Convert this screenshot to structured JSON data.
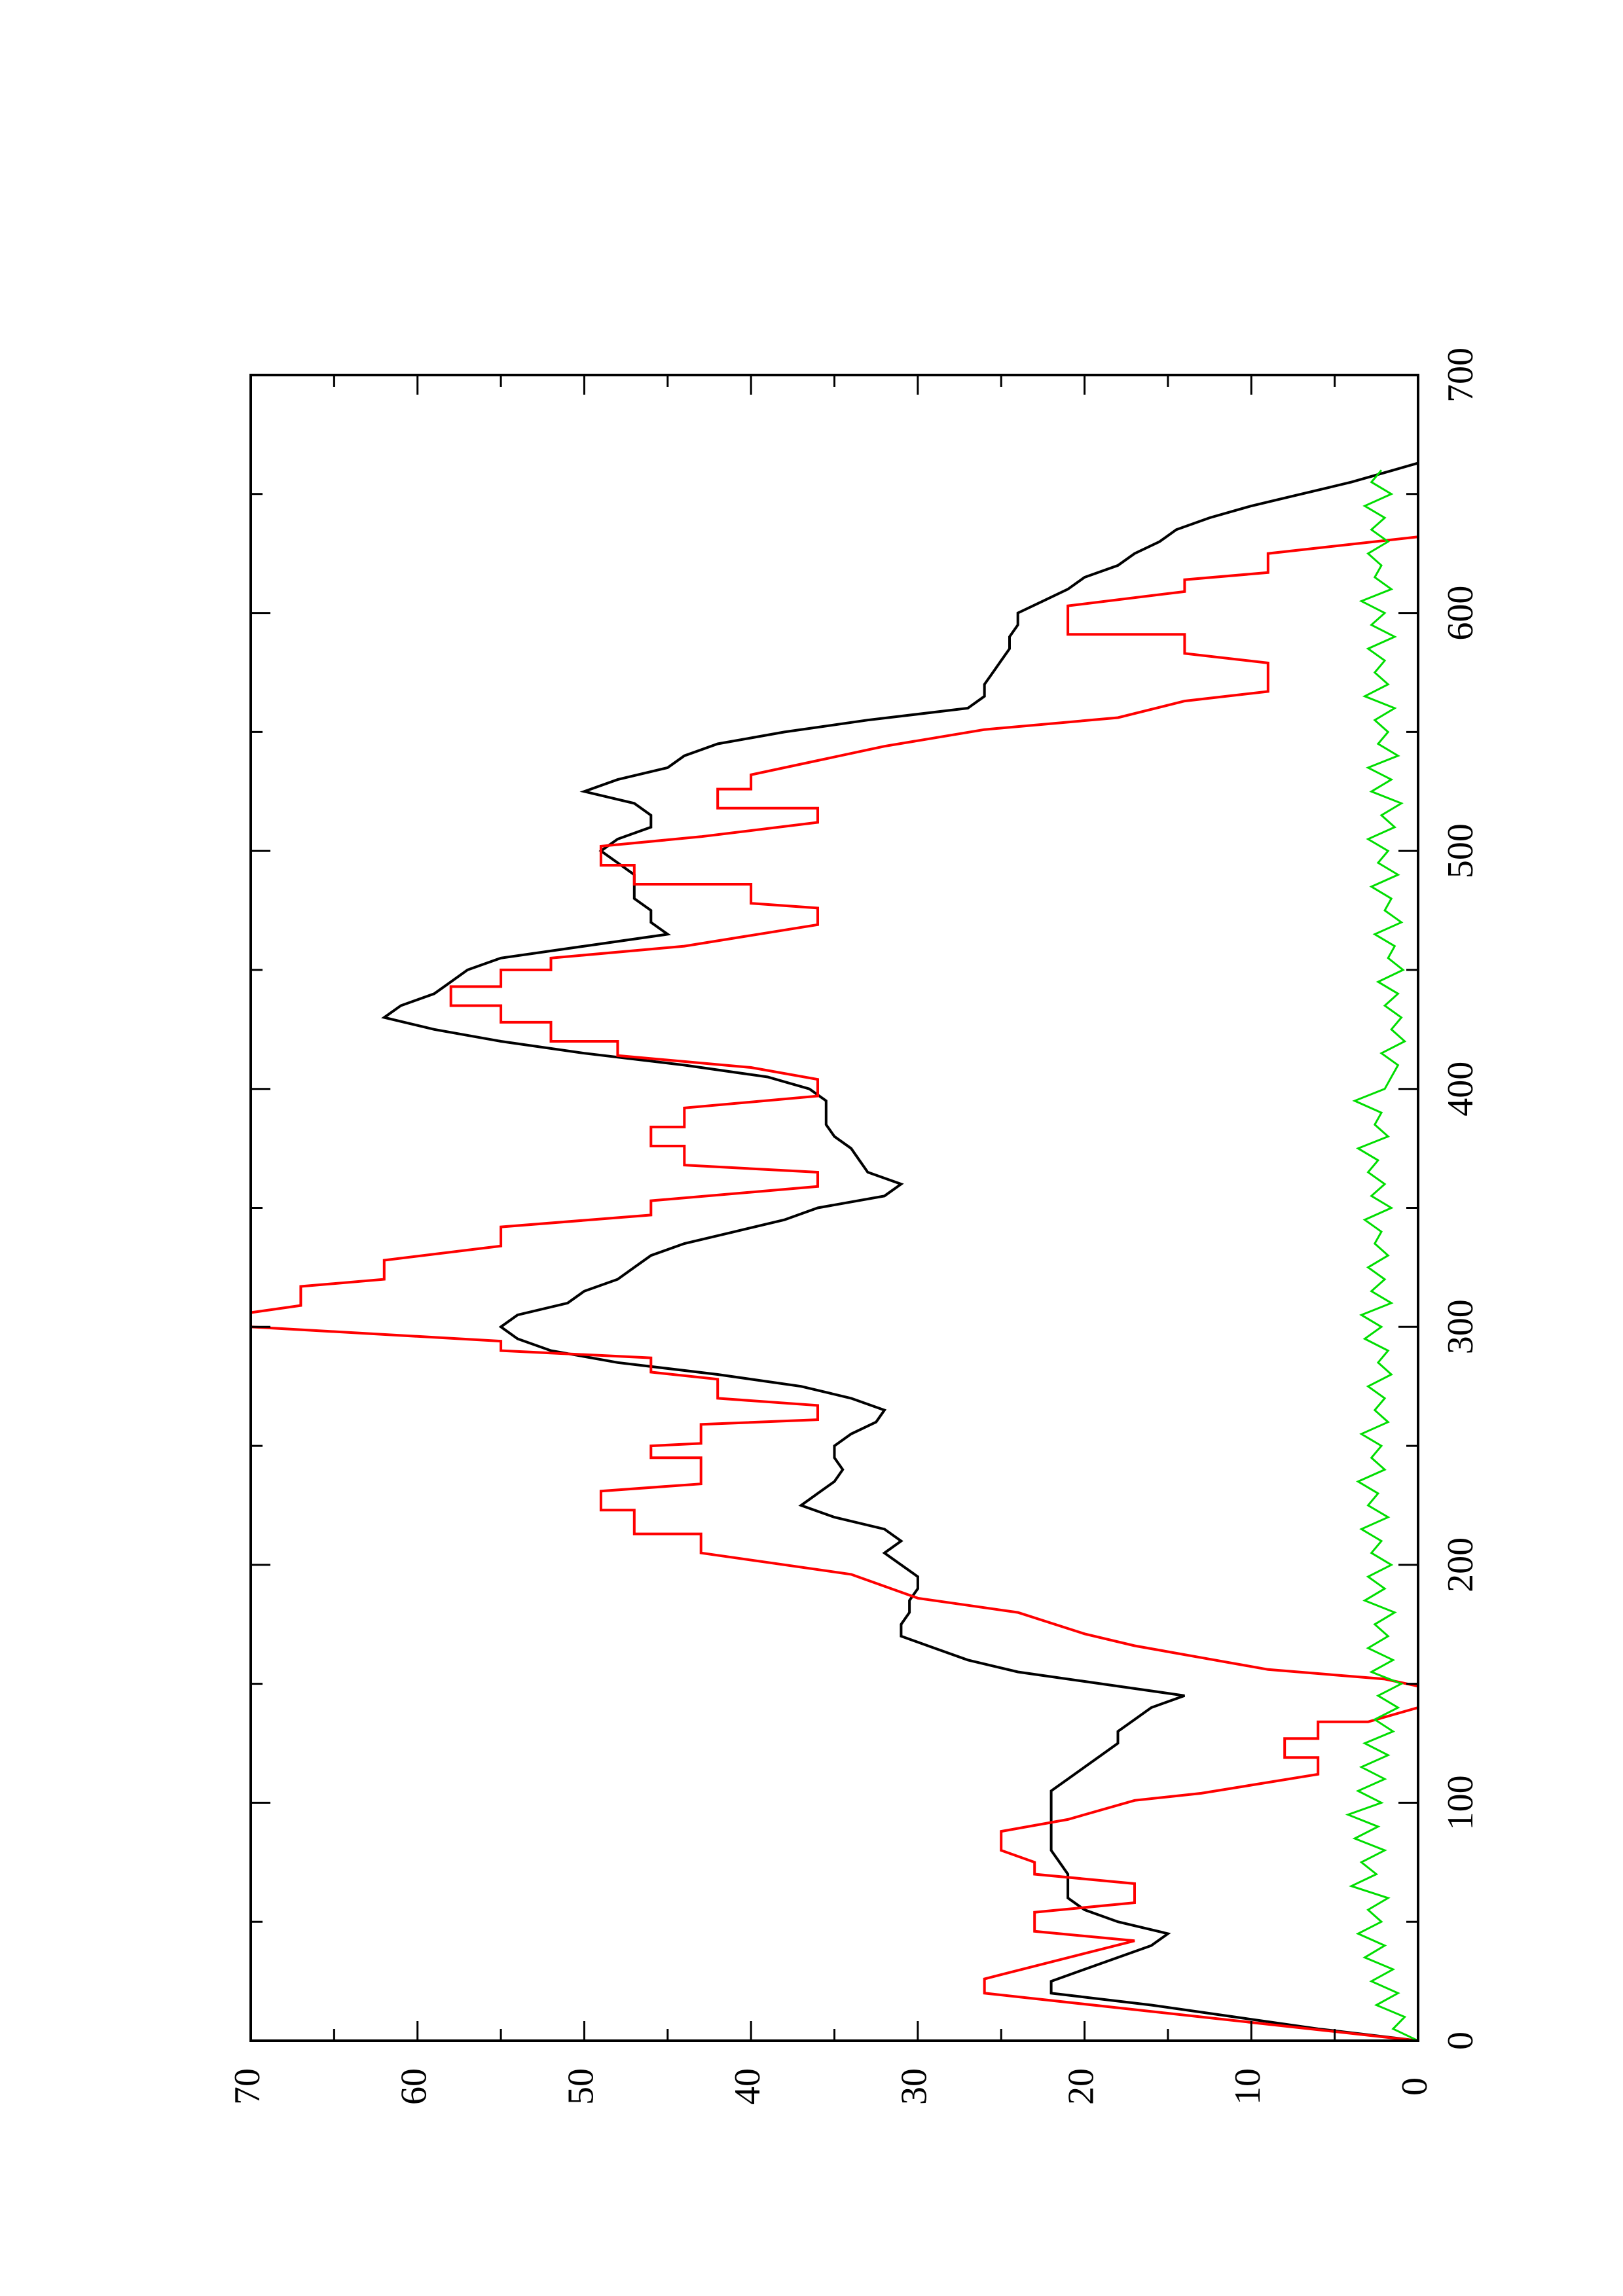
{
  "chart_data": {
    "type": "line",
    "orientation": "rotated-90-ccw",
    "title": "",
    "xlabel": "",
    "ylabel": "",
    "xlim": [
      0,
      700
    ],
    "ylim": [
      0,
      70
    ],
    "x_ticks": [
      0,
      100,
      200,
      300,
      400,
      500,
      600,
      700
    ],
    "y_ticks": [
      0,
      10,
      20,
      30,
      40,
      50,
      60,
      70
    ],
    "x_tick_labels": [
      "0",
      "100",
      "200",
      "300",
      "400",
      "500",
      "600",
      "700"
    ],
    "y_tick_labels": [
      "0",
      "10",
      "20",
      "30",
      "40",
      "50",
      "60",
      "70"
    ],
    "grid": false,
    "series": [
      {
        "color": "#000000",
        "style": "line",
        "x": [
          0,
          5,
          10,
          15,
          20,
          25,
          30,
          35,
          40,
          45,
          50,
          55,
          60,
          65,
          70,
          75,
          80,
          85,
          90,
          95,
          100,
          105,
          110,
          115,
          120,
          125,
          130,
          135,
          140,
          145,
          150,
          155,
          160,
          165,
          170,
          175,
          180,
          185,
          190,
          195,
          200,
          205,
          210,
          215,
          220,
          225,
          230,
          235,
          240,
          245,
          250,
          255,
          260,
          265,
          270,
          275,
          280,
          285,
          290,
          295,
          300,
          305,
          310,
          315,
          320,
          325,
          330,
          335,
          340,
          345,
          350,
          355,
          360,
          365,
          370,
          375,
          380,
          385,
          390,
          395,
          400,
          405,
          410,
          415,
          420,
          425,
          430,
          435,
          440,
          445,
          450,
          455,
          460,
          465,
          470,
          475,
          480,
          485,
          490,
          495,
          500,
          505,
          510,
          515,
          520,
          525,
          530,
          535,
          540,
          545,
          550,
          555,
          560,
          565,
          570,
          575,
          580,
          585,
          590,
          595,
          600,
          605,
          610,
          615,
          620,
          625,
          630,
          635,
          640,
          645,
          650,
          655,
          660,
          663
        ],
        "y": [
          0,
          6,
          11,
          16,
          22,
          22,
          20,
          18,
          16,
          15,
          18,
          20,
          21,
          21,
          21,
          21.5,
          22,
          22,
          22,
          22,
          22,
          22,
          21,
          20,
          19,
          18,
          18,
          17,
          16,
          14,
          19,
          24,
          27,
          29,
          31,
          31,
          30.5,
          30.5,
          30,
          30,
          31,
          32,
          31,
          32,
          35,
          37,
          36,
          35,
          34.5,
          35,
          35,
          34,
          32.5,
          32,
          34,
          37,
          42,
          48,
          52,
          54,
          55,
          54,
          51,
          50,
          48,
          47,
          46,
          44,
          41,
          38,
          36,
          32,
          31,
          33,
          33.5,
          34,
          35,
          35.5,
          35.5,
          35.5,
          36.5,
          39,
          44,
          50,
          55,
          59,
          62,
          61,
          59,
          58,
          57,
          55,
          50,
          45,
          46,
          46,
          47,
          47,
          47,
          48,
          49,
          48,
          46,
          46,
          47,
          50,
          48,
          45,
          44,
          42,
          38,
          33,
          27,
          26,
          26,
          25.5,
          25,
          24.5,
          24.5,
          24,
          24,
          22.5,
          21,
          20,
          18,
          17,
          15.5,
          14.5,
          12.5,
          10,
          7,
          4,
          1.5,
          0
        ]
      },
      {
        "color": "#ff0000",
        "style": "step",
        "x": [
          0,
          5,
          20,
          25,
          40,
          45,
          55,
          60,
          65,
          70,
          75,
          80,
          85,
          90,
          95,
          100,
          105,
          115,
          120,
          125,
          130,
          135,
          140,
          145,
          150,
          155,
          160,
          165,
          170,
          175,
          180,
          185,
          190,
          195,
          200,
          205,
          210,
          215,
          220,
          225,
          230,
          235,
          240,
          245,
          250,
          255,
          260,
          265,
          270,
          275,
          280,
          285,
          290,
          295,
          300,
          305,
          310,
          315,
          320,
          325,
          330,
          335,
          340,
          345,
          350,
          355,
          360,
          365,
          370,
          375,
          380,
          385,
          390,
          395,
          400,
          405,
          410,
          415,
          420,
          425,
          430,
          435,
          440,
          445,
          450,
          455,
          460,
          465,
          470,
          475,
          480,
          485,
          490,
          495,
          500,
          505,
          510,
          515,
          520,
          525,
          530,
          535,
          540,
          545,
          550,
          555,
          560,
          565,
          570,
          575,
          580,
          585,
          590,
          595,
          600,
          605,
          610,
          615,
          620,
          625,
          630,
          635,
          640,
          645,
          650,
          655,
          660
        ],
        "y": [
          0,
          13,
          26,
          26,
          17,
          23,
          23,
          17,
          23,
          17,
          25,
          25,
          23,
          23,
          21,
          17,
          13,
          6,
          8,
          8,
          6,
          4,
          2,
          0,
          2,
          9,
          13,
          17,
          20,
          24,
          27,
          30,
          34,
          39,
          43,
          47,
          47,
          49,
          49,
          43,
          43,
          46,
          46,
          43,
          36,
          36,
          42,
          46,
          50,
          55,
          61,
          67,
          70,
          70,
          65,
          62,
          59,
          55,
          51,
          48,
          45,
          41,
          37,
          36,
          36,
          44,
          46,
          46,
          44,
          40,
          36,
          36,
          40,
          45,
          52,
          55,
          57,
          58,
          58,
          58,
          57,
          55,
          51,
          47,
          44,
          40,
          36,
          36,
          40,
          47,
          50,
          50,
          47,
          43,
          36,
          36,
          42,
          45,
          41,
          37,
          32,
          26,
          18,
          14,
          10,
          9,
          9,
          9,
          14,
          14,
          21,
          21,
          14,
          9,
          9,
          9,
          0,
          0,
          0,
          0,
          0,
          0,
          0,
          0,
          0,
          0,
          0
        ],
        "steps": [
          [
            0,
            0
          ],
          [
            10,
            13
          ],
          [
            20,
            26
          ],
          [
            26,
            26
          ],
          [
            42,
            17
          ],
          [
            46,
            23
          ],
          [
            54,
            23
          ],
          [
            58,
            17
          ],
          [
            66,
            17
          ],
          [
            70,
            23
          ],
          [
            75,
            23
          ],
          [
            80,
            25
          ],
          [
            88,
            25
          ],
          [
            93,
            21
          ],
          [
            101,
            17
          ],
          [
            104,
            13
          ],
          [
            112,
            6
          ],
          [
            119,
            6
          ],
          [
            119,
            8
          ],
          [
            127,
            8
          ],
          [
            127,
            6
          ],
          [
            134,
            6
          ],
          [
            134,
            3
          ],
          [
            140,
            0
          ],
          [
            149,
            0
          ],
          [
            152,
            2
          ],
          [
            156,
            9
          ],
          [
            161,
            13
          ],
          [
            166,
            17
          ],
          [
            171,
            20
          ],
          [
            180,
            24
          ],
          [
            183,
            27
          ],
          [
            186,
            30
          ],
          [
            196,
            34
          ],
          [
            201,
            39
          ],
          [
            205,
            43
          ],
          [
            213,
            43
          ],
          [
            213,
            47
          ],
          [
            223,
            47
          ],
          [
            223,
            49
          ],
          [
            231,
            49
          ],
          [
            234,
            43
          ],
          [
            245,
            43
          ],
          [
            245,
            46
          ],
          [
            250,
            46
          ],
          [
            251,
            43
          ],
          [
            259,
            43
          ],
          [
            261,
            36
          ],
          [
            267,
            36
          ],
          [
            270,
            42
          ],
          [
            278,
            42
          ],
          [
            281,
            46
          ],
          [
            287,
            46
          ],
          [
            290,
            55
          ],
          [
            294,
            55
          ],
          [
            300,
            70
          ],
          [
            306,
            70
          ],
          [
            309,
            67
          ],
          [
            317,
            67
          ],
          [
            320,
            62
          ],
          [
            328,
            62
          ],
          [
            334,
            55
          ],
          [
            342,
            55
          ],
          [
            347,
            46
          ],
          [
            353,
            46
          ],
          [
            359,
            36
          ],
          [
            365,
            36
          ],
          [
            368,
            44
          ],
          [
            376,
            44
          ],
          [
            376,
            46
          ],
          [
            384,
            46
          ],
          [
            384,
            44
          ],
          [
            392,
            44
          ],
          [
            397,
            36
          ],
          [
            404,
            36
          ],
          [
            409,
            40
          ],
          [
            414,
            48
          ],
          [
            420,
            48
          ],
          [
            420,
            52
          ],
          [
            428,
            52
          ],
          [
            428,
            55
          ],
          [
            435,
            55
          ],
          [
            435,
            58
          ],
          [
            443,
            58
          ],
          [
            443,
            55
          ],
          [
            450,
            55
          ],
          [
            450,
            52
          ],
          [
            455,
            52
          ],
          [
            460,
            44
          ],
          [
            469,
            36
          ],
          [
            476,
            36
          ],
          [
            478,
            40
          ],
          [
            486,
            40
          ],
          [
            486,
            47
          ],
          [
            494,
            47
          ],
          [
            494,
            49
          ],
          [
            502,
            49
          ],
          [
            506,
            43
          ],
          [
            512,
            36
          ],
          [
            518,
            36
          ],
          [
            518,
            42
          ],
          [
            526,
            42
          ],
          [
            526,
            40
          ],
          [
            532,
            40
          ],
          [
            538,
            36
          ],
          [
            544,
            32
          ],
          [
            551,
            26
          ],
          [
            556,
            18
          ],
          [
            563,
            14
          ],
          [
            567,
            9
          ],
          [
            574,
            9
          ],
          [
            579,
            9
          ],
          [
            583,
            14
          ],
          [
            591,
            14
          ],
          [
            591,
            21
          ],
          [
            603,
            21
          ],
          [
            609,
            14
          ],
          [
            614,
            14
          ],
          [
            617,
            9
          ],
          [
            625,
            9
          ],
          [
            632,
            0
          ],
          [
            660,
            0
          ]
        ]
      },
      {
        "color": "#00dd00",
        "style": "line",
        "x": [
          0,
          5,
          10,
          15,
          20,
          25,
          30,
          35,
          40,
          45,
          50,
          55,
          60,
          65,
          70,
          75,
          80,
          85,
          90,
          95,
          100,
          105,
          110,
          115,
          120,
          125,
          130,
          135,
          140,
          145,
          150,
          155,
          160,
          165,
          170,
          175,
          180,
          185,
          190,
          195,
          200,
          205,
          210,
          215,
          220,
          225,
          230,
          235,
          240,
          245,
          250,
          255,
          260,
          265,
          270,
          275,
          280,
          285,
          290,
          295,
          300,
          305,
          310,
          315,
          320,
          325,
          330,
          335,
          340,
          345,
          350,
          355,
          360,
          365,
          370,
          375,
          380,
          385,
          390,
          395,
          400,
          405,
          410,
          415,
          420,
          425,
          430,
          435,
          440,
          445,
          450,
          455,
          460,
          465,
          470,
          475,
          480,
          485,
          490,
          495,
          500,
          505,
          510,
          515,
          520,
          525,
          530,
          535,
          540,
          545,
          550,
          555,
          560,
          565,
          570,
          575,
          580,
          585,
          590,
          595,
          600,
          605,
          610,
          615,
          620,
          625,
          630,
          635,
          640,
          645,
          650,
          655,
          660
        ],
        "y": [
          0,
          1.5,
          0.8,
          2.5,
          1.2,
          2.8,
          1.5,
          3.2,
          2.0,
          3.6,
          2.2,
          3.0,
          1.8,
          4.0,
          2.5,
          3.4,
          2.0,
          3.8,
          2.4,
          4.2,
          2.2,
          3.6,
          2.0,
          3.4,
          1.8,
          3.2,
          1.5,
          2.6,
          1.2,
          2.4,
          1.0,
          2.8,
          1.5,
          3.0,
          1.8,
          2.6,
          1.4,
          3.2,
          2.0,
          3.0,
          1.6,
          2.8,
          2.2,
          3.4,
          1.8,
          3.0,
          2.4,
          3.6,
          2.0,
          2.8,
          2.2,
          3.4,
          1.8,
          2.6,
          2.0,
          3.0,
          1.6,
          2.4,
          1.8,
          3.2,
          2.2,
          3.4,
          1.6,
          2.8,
          2.0,
          3.0,
          1.8,
          2.6,
          2.2,
          3.2,
          1.6,
          2.8,
          2.0,
          3.0,
          2.4,
          3.6,
          1.8,
          2.6,
          2.2,
          3.8,
          2.0,
          1.6,
          1.2,
          2.2,
          0.8,
          1.6,
          1.0,
          2.0,
          1.2,
          2.4,
          0.9,
          1.8,
          1.4,
          2.6,
          1.0,
          2.0,
          1.6,
          2.8,
          1.2,
          2.4,
          1.8,
          3.0,
          1.4,
          2.2,
          1.0,
          2.8,
          1.6,
          3.0,
          1.2,
          2.4,
          1.8,
          2.6,
          1.4,
          3.2,
          1.8,
          2.6,
          2.0,
          3.0,
          1.4,
          2.8,
          2.0,
          3.4,
          1.6,
          2.6,
          2.2,
          3.0,
          1.8,
          2.8,
          2.0,
          3.2,
          1.6,
          2.8,
          2.2
        ]
      }
    ]
  }
}
